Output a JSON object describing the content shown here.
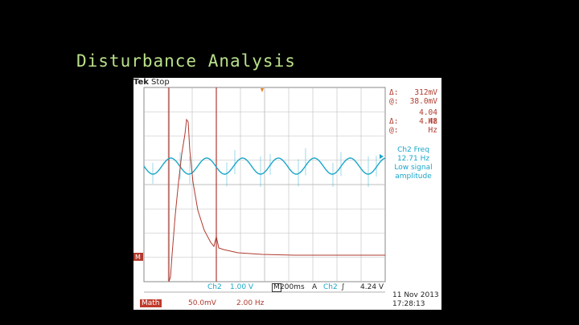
{
  "slide": {
    "title": "Disturbance Analysis"
  },
  "scope": {
    "brand": "Tek",
    "status": "Stop",
    "readouts": [
      {
        "symbol": "Δ:",
        "value": "312mV"
      },
      {
        "symbol": "@:",
        "value": "38.0mV"
      },
      {
        "symbol": "Δ:",
        "value": "4.04 Hz"
      },
      {
        "symbol": "@:",
        "value": "4.48 Hz"
      }
    ],
    "ch2_info": {
      "line1": "Ch2 Freq",
      "line2": "12.71 Hz",
      "line3": "Low signal",
      "line4": "amplitude"
    },
    "bottom": {
      "ch2_label": "Ch2",
      "ch2_scale": "1.00 V",
      "timebase_marker": "M",
      "timebase": "200ms",
      "trigger_marker": "A",
      "trigger_source": "Ch2",
      "trigger_slope": "∫",
      "trigger_level": "4.24 V",
      "math_label": "Math",
      "math_scale": "50.0mV",
      "math_freq": "2.00 Hz",
      "date": "11 Nov 2013",
      "time": "17:28:13"
    },
    "markers": {
      "math_ref": "M"
    },
    "colors": {
      "cyan_trace": "#1aa7c9",
      "red_trace": "#b03a2e",
      "grid": "#bdbdbd"
    }
  }
}
